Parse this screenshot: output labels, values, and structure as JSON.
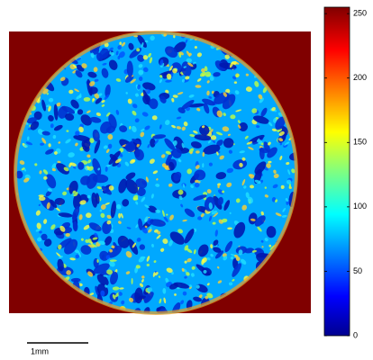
{
  "image": {
    "colorbar": {
      "clim": [
        0,
        255
      ],
      "ticks": [
        0,
        50,
        100,
        150,
        200,
        250
      ]
    }
  },
  "scale_bar": {
    "label": "1mm"
  }
}
